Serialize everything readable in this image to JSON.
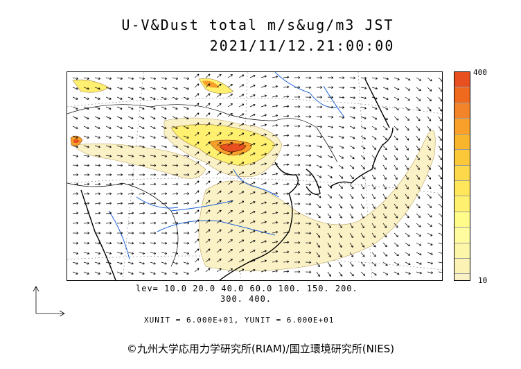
{
  "header": {
    "title": "U-V&Dust total m/s&ug/m3 JST",
    "timestamp": "2021/11/12.21:00:00"
  },
  "contour_levels": {
    "line1": "lev= 10.0 20.0 40.0 60.0 100. 150. 200.",
    "line2": "300. 400."
  },
  "units_line": "XUNIT = 6.000E+01, YUNIT = 6.000E+01",
  "colorbar": {
    "max_label": "400",
    "min_label": "10",
    "colors": [
      "#e8501f",
      "#f06a1e",
      "#f4842a",
      "#f8a02a",
      "#f9b52c",
      "#fbc83a",
      "#fdd84a",
      "#ffe65a",
      "#fff070",
      "#fffc8a",
      "#fffb9f",
      "#fcf6a8",
      "#fbf2b4",
      "#fbf1c6"
    ]
  },
  "map_colors": {
    "coast": "#000000",
    "river": "#1a5fd6",
    "dust_low": "#fbf1c6",
    "dust_mid": "#fff070",
    "dust_high": "#f8a02a",
    "dust_peak": "#e8501f"
  },
  "credit": "©九州大学応用力学研究所(RIAM)/国立環境研究所(NIES)"
}
